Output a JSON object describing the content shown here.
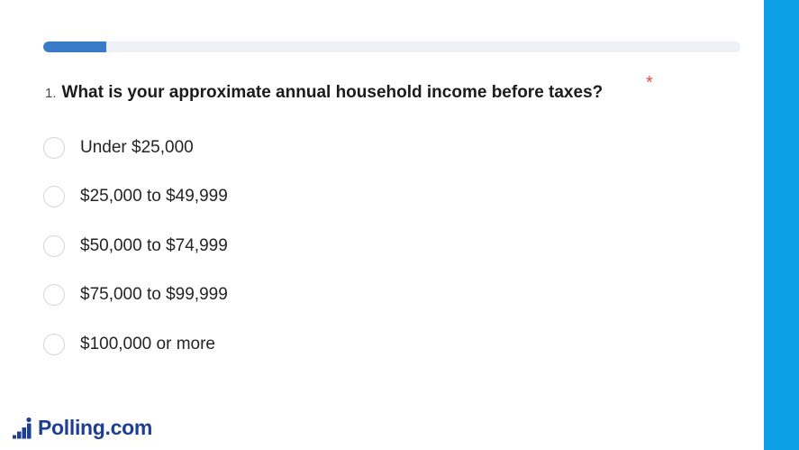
{
  "progress": {
    "fraction": 0.09
  },
  "question": {
    "number": "1.",
    "text": "What is your approximate annual household income before taxes?",
    "required_mark": "*"
  },
  "options": [
    {
      "label": "Under $25,000"
    },
    {
      "label": "$25,000 to $49,999"
    },
    {
      "label": "$50,000 to $74,999"
    },
    {
      "label": "$75,000 to $99,999"
    },
    {
      "label": "$100,000 or more"
    }
  ],
  "brand": {
    "name": "Polling.com",
    "icon": "stairs-person-icon"
  },
  "colors": {
    "progress_fill": "#3a7ac9",
    "side_band": "#0ea0e6",
    "brand": "#1e3f8f",
    "required": "#d9534f"
  }
}
